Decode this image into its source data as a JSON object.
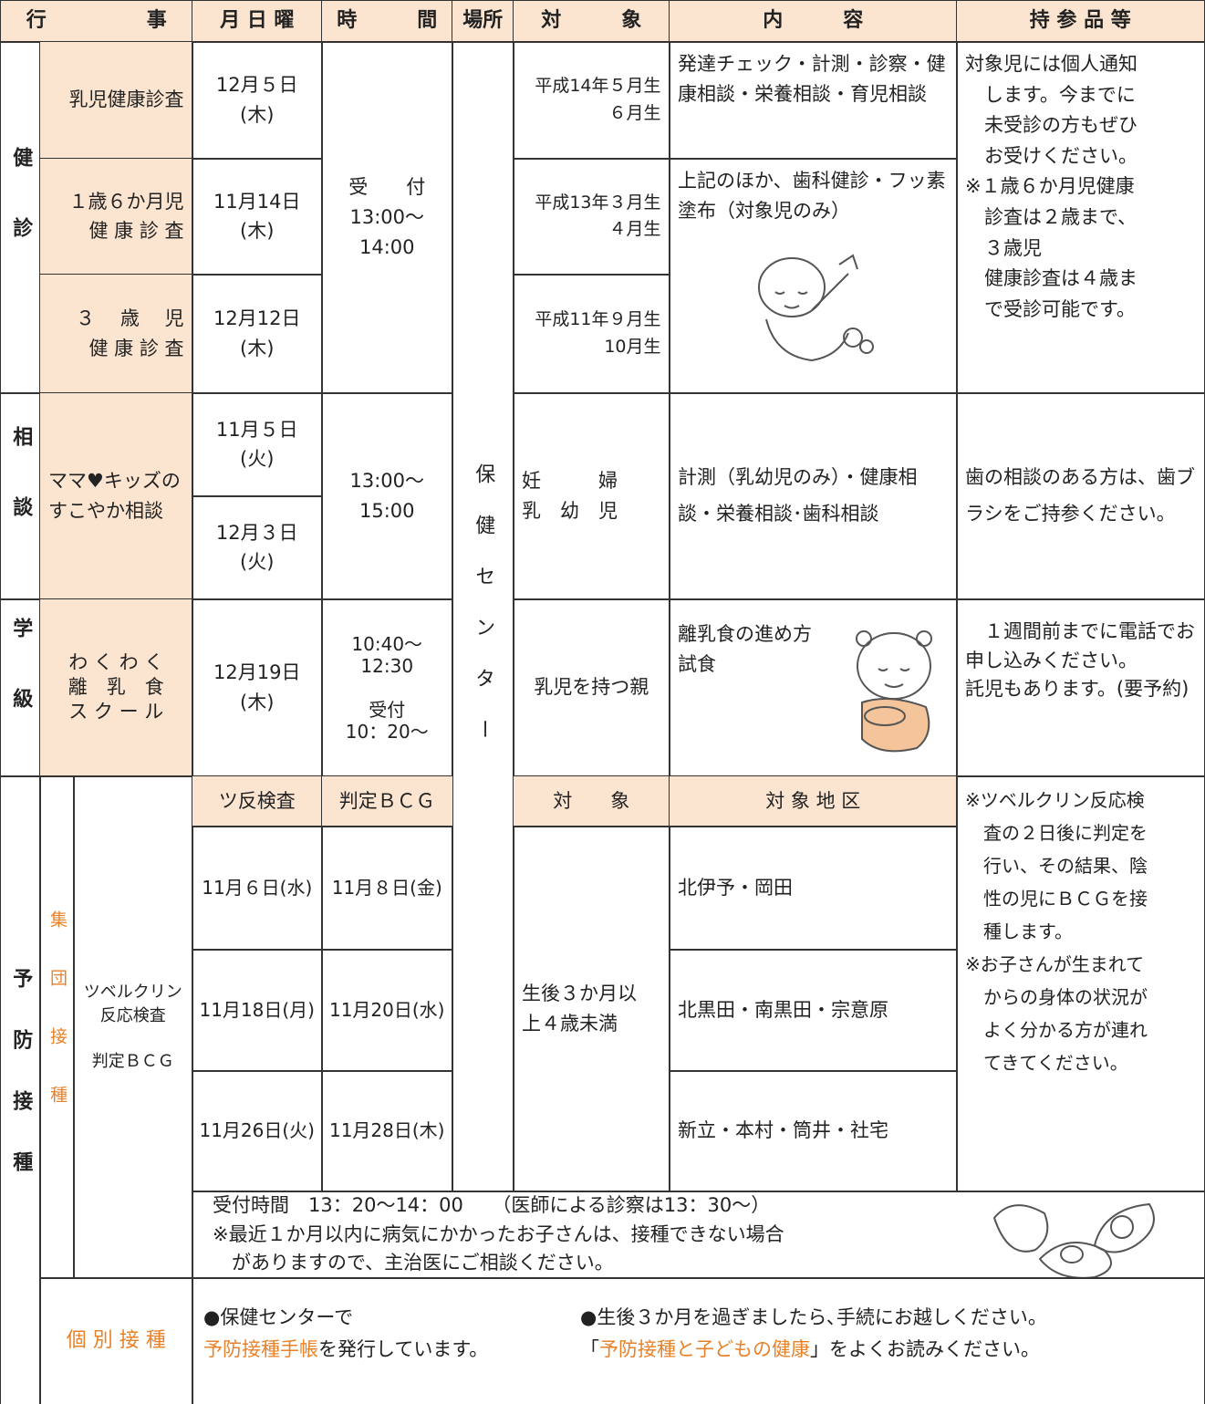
{
  "header": {
    "event": "行　　　　　事",
    "date": "月 日 曜",
    "time": "時　　　間",
    "place": "場所",
    "target": "対　　　象",
    "content": "内　　　容",
    "bring": "持 参 品 等"
  },
  "kenshin": {
    "category": "健診",
    "rows": [
      {
        "event": "乳児健康診査",
        "date": "12月５日(木)",
        "target": "平成14年５月生\n６月生"
      },
      {
        "event": "１歳６か月児\n健 康 診 査",
        "date": "11月14日(木)",
        "target": "平成13年３月生\n４月生"
      },
      {
        "event": "３　 歳　 児\n健 康 診 査",
        "date": "12月12日(木)",
        "target": "平成11年９月生\n10月生"
      }
    ],
    "time": "受　　付\n13:00～14:00",
    "content": [
      "発達チェック・計測・診察・健康相談・栄養相談・育児相談",
      "上記のほか、歯科健診・フッ素塗布（対象児のみ）"
    ],
    "bring": "対象児には個人通知\n　します。今までに\n　未受診の方もぜひ\n　お受けください。\n※１歳６か月児健康\n　診査は２歳まで、\n　３歳児\n　健康診査は４歳ま\n　で受診可能です。"
  },
  "place": "保健センター",
  "soudan": {
    "category": "相談",
    "event": "ママ♥キッズの\nすこやか相談",
    "dates": [
      "11月５日(火)",
      "12月３日(火)"
    ],
    "time": "13:00～15:00",
    "target": "妊　　　婦\n乳　幼　児",
    "content": "計測（乳幼児のみ）・健康相談・栄養相談･歯科相談",
    "bring": "歯の相談のある方は、歯ブラシをご持参ください。"
  },
  "gakkyu": {
    "category": "学級",
    "event": "わ く わ く\n離　乳　食\nス ク ー ル",
    "date": "12月19日(木)",
    "time": "10:40～12:30\n\n受付\n10：20～",
    "target": "乳児を持つ親",
    "content": "離乳食の進め方\n試食",
    "bring": "　１週間前までに電話でお申し込みください。\n託児もあります。(要予約)"
  },
  "yobou": {
    "category": "予防接種",
    "group": {
      "label": "集団接種",
      "name": "ツベルクリン\n反応検査\n\n判定ＢＣＧ",
      "columns": [
        "ツ反検査",
        "判定ＢＣＧ",
        "対　　象",
        "対 象 地 区"
      ],
      "rows": [
        {
          "test": "11月６日(水)",
          "judge": "11月８日(金)",
          "area": "北伊予・岡田"
        },
        {
          "test": "11月18日(月)",
          "judge": "11月20日(水)",
          "area": "北黒田・南黒田・宗意原"
        },
        {
          "test": "11月26日(火)",
          "judge": "11月28日(木)",
          "area": "新立・本村・筒井・社宅"
        }
      ],
      "target": "生後３か月以\n上４歳未満",
      "note": "※ツベルクリン反応検\n　査の２日後に判定を\n　行い、その結果、陰\n　性の児にＢＣＧを接\n　種します。\n※お子さんが生まれて\n　からの身体の状況が\n　よく分かる方が連れ\n　てきてください。",
      "notice": [
        "受付時間　13：20～14：00　　（医師による診察は13：30～）",
        "※最近１か月以内に病気にかかったお子さんは、接種できない場合",
        "　がありますので、主治医にご相談ください。"
      ]
    },
    "individual": {
      "label": "個 別 接 種",
      "left": {
        "line1": "●保健センターで",
        "highlight": "予防接種手帳",
        "rest": "を発行しています。"
      },
      "right": {
        "line1": "●生後３か月を過ぎましたら､手続にお越しください。",
        "open": "「",
        "highlight": "予防接種と子どもの健康",
        "rest": "」をよくお読みください。"
      }
    }
  }
}
